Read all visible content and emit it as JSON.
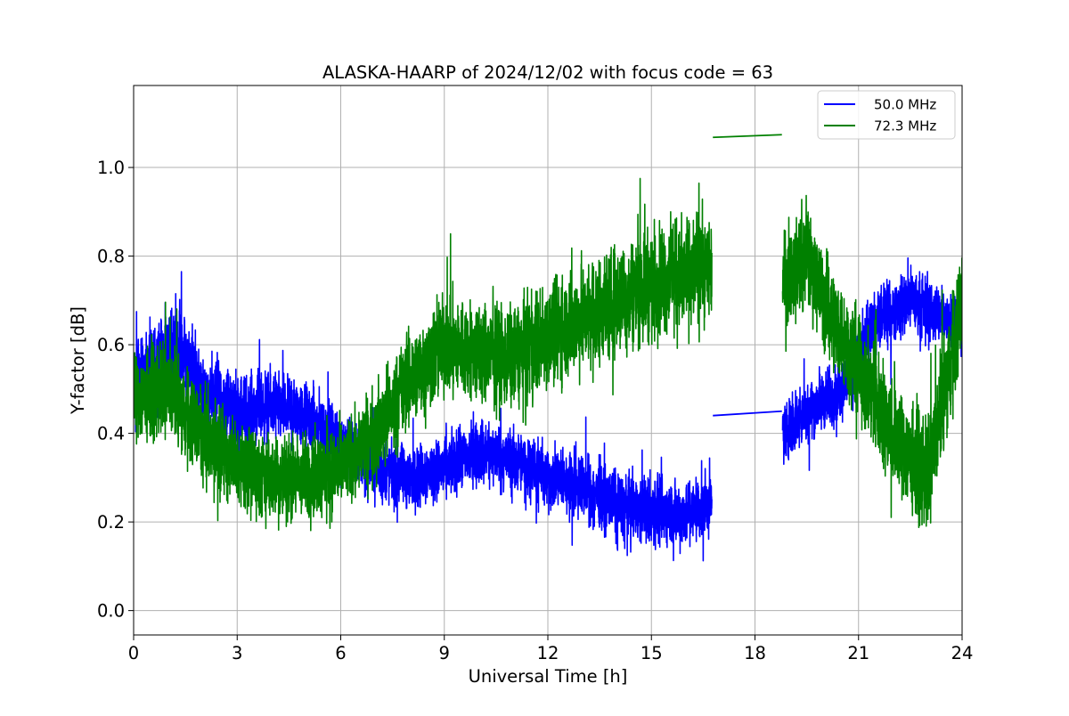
{
  "chart_data": {
    "type": "line",
    "title": "ALASKA-HAARP of 2024/12/02 with focus code = 63",
    "xlabel": "Universal Time [h]",
    "ylabel": "Y-factor [dB]",
    "xlim": [
      0,
      24
    ],
    "ylim": [
      -0.055,
      1.185
    ],
    "xticks": [
      0,
      3,
      6,
      9,
      12,
      15,
      18,
      21,
      24
    ],
    "yticks": [
      0.0,
      0.2,
      0.4,
      0.6,
      0.8,
      1.0
    ],
    "xtick_labels": [
      "0",
      "3",
      "6",
      "9",
      "12",
      "15",
      "18",
      "21",
      "24"
    ],
    "ytick_labels": [
      "0.0",
      "0.2",
      "0.4",
      "0.6",
      "0.8",
      "1.0"
    ],
    "grid": true,
    "legend_position": "top-right",
    "series": [
      {
        "name": "50.0 MHz",
        "color": "#0000ff",
        "center": [
          [
            0.0,
            0.5
          ],
          [
            0.5,
            0.55
          ],
          [
            1.0,
            0.58
          ],
          [
            1.5,
            0.57
          ],
          [
            2.0,
            0.5
          ],
          [
            2.5,
            0.48
          ],
          [
            3.0,
            0.45
          ],
          [
            4.0,
            0.46
          ],
          [
            5.0,
            0.44
          ],
          [
            6.0,
            0.38
          ],
          [
            7.0,
            0.32
          ],
          [
            8.0,
            0.3
          ],
          [
            9.0,
            0.32
          ],
          [
            10.0,
            0.36
          ],
          [
            11.0,
            0.34
          ],
          [
            12.0,
            0.3
          ],
          [
            13.0,
            0.28
          ],
          [
            14.0,
            0.24
          ],
          [
            15.0,
            0.22
          ],
          [
            16.0,
            0.22
          ],
          [
            16.75,
            0.24
          ],
          [
            16.8,
            0.44
          ],
          [
            18.75,
            0.45
          ],
          [
            18.8,
            0.4
          ],
          [
            19.5,
            0.45
          ],
          [
            20.5,
            0.5
          ],
          [
            21.5,
            0.65
          ],
          [
            22.5,
            0.7
          ],
          [
            23.0,
            0.68
          ],
          [
            24.0,
            0.65
          ]
        ],
        "amplitude": [
          [
            0.0,
            0.14
          ],
          [
            3.0,
            0.12
          ],
          [
            6.0,
            0.1
          ],
          [
            9.0,
            0.1
          ],
          [
            12.0,
            0.1
          ],
          [
            15.0,
            0.11
          ],
          [
            16.7,
            0.11
          ],
          [
            18.8,
            0.1
          ],
          [
            21.0,
            0.1
          ],
          [
            24.0,
            0.1
          ]
        ],
        "bridge": {
          "x": [
            16.78,
            18.78
          ],
          "y": [
            0.44,
            0.45
          ]
        }
      },
      {
        "name": "72.3 MHz",
        "color": "#008000",
        "center": [
          [
            0.0,
            0.48
          ],
          [
            1.0,
            0.5
          ],
          [
            2.0,
            0.4
          ],
          [
            3.0,
            0.33
          ],
          [
            4.0,
            0.3
          ],
          [
            5.0,
            0.3
          ],
          [
            6.0,
            0.32
          ],
          [
            7.0,
            0.4
          ],
          [
            8.0,
            0.52
          ],
          [
            9.0,
            0.6
          ],
          [
            10.0,
            0.58
          ],
          [
            11.0,
            0.57
          ],
          [
            12.0,
            0.62
          ],
          [
            13.0,
            0.66
          ],
          [
            14.0,
            0.7
          ],
          [
            15.0,
            0.74
          ],
          [
            16.0,
            0.76
          ],
          [
            16.75,
            0.78
          ],
          [
            16.8,
            1.07
          ],
          [
            18.75,
            1.075
          ],
          [
            18.8,
            0.75
          ],
          [
            19.5,
            0.8
          ],
          [
            20.0,
            0.7
          ],
          [
            21.0,
            0.55
          ],
          [
            22.0,
            0.4
          ],
          [
            23.0,
            0.3
          ],
          [
            24.0,
            0.7
          ]
        ],
        "amplitude": [
          [
            0.0,
            0.15
          ],
          [
            3.0,
            0.14
          ],
          [
            6.0,
            0.14
          ],
          [
            9.0,
            0.16
          ],
          [
            12.0,
            0.17
          ],
          [
            15.0,
            0.18
          ],
          [
            16.7,
            0.17
          ],
          [
            18.8,
            0.15
          ],
          [
            21.0,
            0.17
          ],
          [
            23.0,
            0.18
          ],
          [
            24.0,
            0.18
          ]
        ],
        "bridge": {
          "x": [
            16.78,
            18.78
          ],
          "y": [
            1.068,
            1.074
          ]
        }
      }
    ]
  }
}
